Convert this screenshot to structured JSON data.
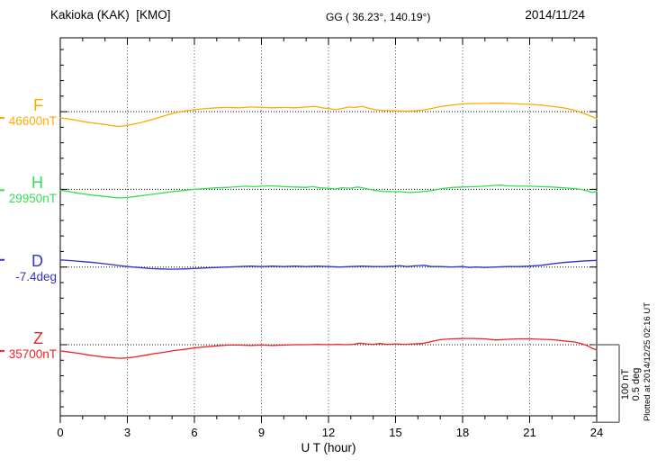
{
  "header": {
    "station": "Kakioka (KAK)  [KMO]",
    "coords": "GG ( 36.23°, 140.19°)",
    "date": "2014/11/24"
  },
  "side": {
    "scale_nt": "100 nT",
    "scale_deg": "0.5 deg",
    "plotted_at": "Plotted at 2014/12/25 02:16 UT"
  },
  "chart_data": {
    "type": "line",
    "xlabel": "U T (hour)",
    "x_range": [
      0,
      24
    ],
    "x_ticks": [
      0,
      3,
      6,
      9,
      12,
      15,
      18,
      21,
      24
    ],
    "x_minor_step_hours": 1,
    "grid": "dotted vertical at 3h, dotted horizontal baselines per channel",
    "scale": {
      "nT_per_div": 100,
      "deg_per_div": 0.5,
      "minor_div_nT": 20,
      "minor_div_deg": 0.1
    },
    "series": [
      {
        "name": "F",
        "unit": "nT",
        "base_value": 46600,
        "base_label": "46600nT",
        "color": "#FFAA00",
        "points": [
          [
            0,
            -8
          ],
          [
            0.4,
            -9.5
          ],
          [
            0.8,
            -11.5
          ],
          [
            1.2,
            -13.5
          ],
          [
            1.6,
            -15
          ],
          [
            2,
            -16.5
          ],
          [
            2.3,
            -18
          ],
          [
            2.6,
            -19
          ],
          [
            2.9,
            -18
          ],
          [
            3.2,
            -16.5
          ],
          [
            3.6,
            -14
          ],
          [
            4,
            -11
          ],
          [
            4.4,
            -7.5
          ],
          [
            4.8,
            -4
          ],
          [
            5.2,
            -1
          ],
          [
            5.6,
            1
          ],
          [
            6,
            2.5
          ],
          [
            6.5,
            4
          ],
          [
            7,
            5
          ],
          [
            7.5,
            5.5
          ],
          [
            8,
            5
          ],
          [
            8.5,
            6
          ],
          [
            9,
            5.5
          ],
          [
            9.5,
            5
          ],
          [
            10,
            5.5
          ],
          [
            10.5,
            5
          ],
          [
            11,
            6
          ],
          [
            11.4,
            7
          ],
          [
            11.7,
            5
          ],
          [
            12,
            4
          ],
          [
            12.3,
            2.5
          ],
          [
            12.6,
            4
          ],
          [
            12.9,
            6
          ],
          [
            13.2,
            5.5
          ],
          [
            13.5,
            7
          ],
          [
            13.8,
            4.5
          ],
          [
            14.1,
            2.5
          ],
          [
            14.5,
            1.5
          ],
          [
            15,
            1
          ],
          [
            15.4,
            0.5
          ],
          [
            15.8,
            1
          ],
          [
            16.2,
            2
          ],
          [
            16.6,
            4
          ],
          [
            17,
            6.5
          ],
          [
            17.5,
            8.5
          ],
          [
            18,
            10
          ],
          [
            18.5,
            10.5
          ],
          [
            19,
            10.5
          ],
          [
            19.5,
            11
          ],
          [
            20,
            10.5
          ],
          [
            20.5,
            10
          ],
          [
            21,
            9.5
          ],
          [
            21.5,
            8.5
          ],
          [
            22,
            7
          ],
          [
            22.5,
            5
          ],
          [
            23,
            2
          ],
          [
            23.3,
            -1
          ],
          [
            23.6,
            -4
          ],
          [
            23.8,
            -6.5
          ],
          [
            24,
            -9
          ]
        ]
      },
      {
        "name": "H",
        "unit": "nT",
        "base_value": 29950,
        "base_label": "29950nT",
        "color": "#33DD55",
        "points": [
          [
            0,
            -1
          ],
          [
            0.4,
            -3
          ],
          [
            0.8,
            -5
          ],
          [
            1.2,
            -6.5
          ],
          [
            1.6,
            -8
          ],
          [
            2,
            -9
          ],
          [
            2.4,
            -10.5
          ],
          [
            2.7,
            -11
          ],
          [
            3,
            -10.5
          ],
          [
            3.4,
            -9
          ],
          [
            3.8,
            -7.5
          ],
          [
            4.2,
            -6
          ],
          [
            4.6,
            -4.5
          ],
          [
            5,
            -3
          ],
          [
            5.5,
            -1.5
          ],
          [
            6,
            0
          ],
          [
            6.5,
            1
          ],
          [
            7,
            2
          ],
          [
            7.5,
            2.5
          ],
          [
            8,
            3.5
          ],
          [
            8.3,
            4
          ],
          [
            8.7,
            3.5
          ],
          [
            9,
            4
          ],
          [
            9.3,
            4.5
          ],
          [
            9.7,
            4
          ],
          [
            10,
            3.5
          ],
          [
            10.5,
            3
          ],
          [
            11,
            2.5
          ],
          [
            11.3,
            3.5
          ],
          [
            11.6,
            2
          ],
          [
            12,
            1.5
          ],
          [
            12.3,
            0.5
          ],
          [
            12.6,
            2
          ],
          [
            13,
            1.5
          ],
          [
            13.3,
            3
          ],
          [
            13.6,
            1.5
          ],
          [
            14,
            -1
          ],
          [
            14.4,
            -2.5
          ],
          [
            14.8,
            -3
          ],
          [
            15.2,
            -3
          ],
          [
            15.6,
            -4
          ],
          [
            16,
            -3.5
          ],
          [
            16.4,
            -2.5
          ],
          [
            16.8,
            -0.5
          ],
          [
            17.2,
            1.5
          ],
          [
            17.6,
            2.5
          ],
          [
            18,
            3
          ],
          [
            18.5,
            3.5
          ],
          [
            19,
            4
          ],
          [
            19.4,
            5
          ],
          [
            19.7,
            5.5
          ],
          [
            20,
            4.5
          ],
          [
            20.5,
            4
          ],
          [
            21,
            4
          ],
          [
            21.5,
            3.5
          ],
          [
            22,
            3
          ],
          [
            22.5,
            2
          ],
          [
            23,
            1
          ],
          [
            23.3,
            0
          ],
          [
            23.6,
            -2
          ],
          [
            23.8,
            -4
          ],
          [
            24,
            -2.5
          ]
        ]
      },
      {
        "name": "D",
        "unit": "deg",
        "base_value": -7.4,
        "base_label": "-7.4deg",
        "color": "#3333CC",
        "points": [
          [
            0,
            0.046
          ],
          [
            0.5,
            0.041
          ],
          [
            1,
            0.035
          ],
          [
            1.5,
            0.029
          ],
          [
            2,
            0.021
          ],
          [
            2.5,
            0.012
          ],
          [
            3,
            0.003
          ],
          [
            3.5,
            -0.003
          ],
          [
            4,
            -0.009
          ],
          [
            4.5,
            -0.012
          ],
          [
            5,
            -0.014
          ],
          [
            5.5,
            -0.012
          ],
          [
            6,
            -0.009
          ],
          [
            6.5,
            -0.006
          ],
          [
            7,
            -0.003
          ],
          [
            7.5,
            0
          ],
          [
            8,
            0.003
          ],
          [
            8.5,
            0.006
          ],
          [
            9,
            0.003
          ],
          [
            9.5,
            0.006
          ],
          [
            10,
            0.003
          ],
          [
            10.5,
            0.006
          ],
          [
            11,
            0.003
          ],
          [
            11.5,
            0.006
          ],
          [
            12,
            0.003
          ],
          [
            12.5,
            0
          ],
          [
            13,
            0.003
          ],
          [
            13.5,
            0.006
          ],
          [
            14,
            0.003
          ],
          [
            14.5,
            0.003
          ],
          [
            15,
            0.006
          ],
          [
            15.2,
            0.009
          ],
          [
            15.5,
            0.003
          ],
          [
            16,
            0.009
          ],
          [
            16.3,
            0.011
          ],
          [
            16.6,
            0.003
          ],
          [
            17,
            0.003
          ],
          [
            17.5,
            0
          ],
          [
            18,
            0.003
          ],
          [
            18.3,
            -0.003
          ],
          [
            18.6,
            0
          ],
          [
            19,
            -0.003
          ],
          [
            19.5,
            0
          ],
          [
            20,
            0.003
          ],
          [
            20.5,
            0.003
          ],
          [
            21,
            0.006
          ],
          [
            21.5,
            0.011
          ],
          [
            22,
            0.02
          ],
          [
            22.5,
            0.029
          ],
          [
            23,
            0.034
          ],
          [
            23.5,
            0.04
          ],
          [
            24,
            0.043
          ]
        ]
      },
      {
        "name": "Z",
        "unit": "nT",
        "base_value": 35700,
        "base_label": "35700nT",
        "color": "#EE2222",
        "points": [
          [
            0,
            -8
          ],
          [
            0.4,
            -9.5
          ],
          [
            0.8,
            -11
          ],
          [
            1.2,
            -13
          ],
          [
            1.6,
            -14.5
          ],
          [
            2,
            -16
          ],
          [
            2.4,
            -17
          ],
          [
            2.7,
            -17.5
          ],
          [
            3,
            -17
          ],
          [
            3.4,
            -15.5
          ],
          [
            3.8,
            -13.5
          ],
          [
            4.2,
            -11.5
          ],
          [
            4.6,
            -10
          ],
          [
            5,
            -8
          ],
          [
            5.4,
            -6.5
          ],
          [
            5.8,
            -5
          ],
          [
            6.2,
            -3.5
          ],
          [
            6.6,
            -2.5
          ],
          [
            7,
            -1.5
          ],
          [
            7.5,
            -0.5
          ],
          [
            8,
            -0.5
          ],
          [
            8.5,
            -1
          ],
          [
            9,
            -0.5
          ],
          [
            9.5,
            -1
          ],
          [
            10,
            -0.5
          ],
          [
            10.5,
            0
          ],
          [
            11,
            0
          ],
          [
            11.5,
            0.5
          ],
          [
            12,
            0
          ],
          [
            12.4,
            0.5
          ],
          [
            12.8,
            0
          ],
          [
            13.1,
            0.5
          ],
          [
            13.4,
            2
          ],
          [
            13.7,
            1
          ],
          [
            14,
            0.5
          ],
          [
            14.3,
            1.5
          ],
          [
            14.6,
            0.5
          ],
          [
            15,
            1
          ],
          [
            15.4,
            0.5
          ],
          [
            15.8,
            1
          ],
          [
            16.2,
            1.5
          ],
          [
            16.6,
            4
          ],
          [
            17,
            6.5
          ],
          [
            17.5,
            7.5
          ],
          [
            18,
            8
          ],
          [
            18.5,
            8
          ],
          [
            19,
            7.5
          ],
          [
            19.5,
            6
          ],
          [
            20,
            7
          ],
          [
            20.5,
            7.5
          ],
          [
            21,
            7.5
          ],
          [
            21.5,
            7
          ],
          [
            22,
            6.5
          ],
          [
            22.5,
            5
          ],
          [
            23,
            3.5
          ],
          [
            23.3,
            1.5
          ],
          [
            23.6,
            -1.5
          ],
          [
            23.8,
            -4.5
          ],
          [
            24,
            -7
          ]
        ]
      }
    ]
  }
}
